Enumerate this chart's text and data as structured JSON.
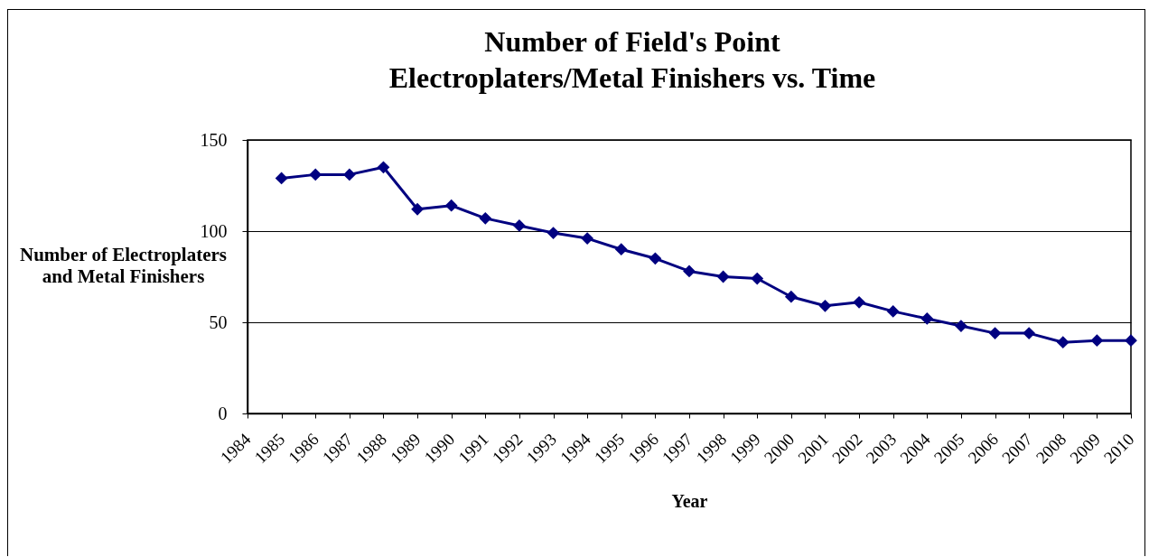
{
  "chart_data": {
    "type": "line",
    "title": "Number of Field's Point Electroplaters/Metal Finishers vs. Time",
    "xlabel": "Year",
    "ylabel": "Number of Electroplaters and Metal Finishers",
    "x": [
      1985,
      1986,
      1987,
      1988,
      1989,
      1990,
      1991,
      1992,
      1993,
      1994,
      1995,
      1996,
      1997,
      1998,
      1999,
      2000,
      2001,
      2002,
      2003,
      2004,
      2005,
      2006,
      2007,
      2008,
      2009,
      2010
    ],
    "series": [
      {
        "color": "#000080",
        "values": [
          129,
          131,
          131,
          135,
          112,
          114,
          107,
          103,
          99,
          96,
          90,
          85,
          78,
          75,
          74,
          64,
          59,
          61,
          56,
          52,
          48,
          44,
          44,
          39,
          40,
          40
        ]
      }
    ],
    "xlim": [
      1984,
      2010
    ],
    "xticks": [
      1984,
      1985,
      1986,
      1987,
      1988,
      1989,
      1990,
      1991,
      1992,
      1993,
      1994,
      1995,
      1996,
      1997,
      1998,
      1999,
      2000,
      2001,
      2002,
      2003,
      2004,
      2005,
      2006,
      2007,
      2008,
      2009,
      2010
    ],
    "ylim": [
      0,
      150
    ],
    "yticks": [
      0,
      50,
      100,
      150
    ],
    "grid": "y",
    "marker": "diamond",
    "line_style": "solid"
  }
}
